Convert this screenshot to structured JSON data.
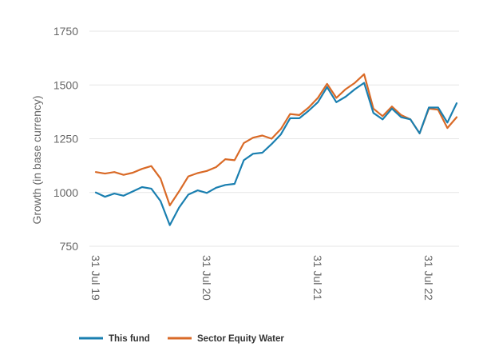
{
  "chart_data": {
    "type": "line",
    "title": "",
    "ylabel": "Growth (in base currency)",
    "xlabel": "",
    "ylim": [
      750,
      1750
    ],
    "yticks": [
      750,
      1000,
      1250,
      1500,
      1750
    ],
    "xticks": [
      {
        "label": "31 Jul 19",
        "t": 0
      },
      {
        "label": "31 Jul 20",
        "t": 12
      },
      {
        "label": "31 Jul 21",
        "t": 24
      },
      {
        "label": "31 Jul 22",
        "t": 36
      }
    ],
    "grid": true,
    "legend": "bottom-left",
    "series": [
      {
        "name": "This fund",
        "color": "#1a7fb0",
        "values": [
          1000,
          980,
          995,
          985,
          1005,
          1025,
          1018,
          960,
          848,
          930,
          990,
          1010,
          998,
          1022,
          1035,
          1040,
          1150,
          1180,
          1185,
          1225,
          1270,
          1345,
          1345,
          1380,
          1420,
          1490,
          1420,
          1445,
          1480,
          1510,
          1370,
          1340,
          1390,
          1350,
          1340,
          1275,
          1395,
          1395,
          1325,
          1415
        ]
      },
      {
        "name": "Sector Equity Water",
        "color": "#d96a27",
        "values": [
          1095,
          1088,
          1095,
          1082,
          1092,
          1110,
          1123,
          1065,
          940,
          1005,
          1075,
          1090,
          1100,
          1118,
          1155,
          1150,
          1230,
          1255,
          1265,
          1250,
          1295,
          1365,
          1360,
          1395,
          1440,
          1505,
          1440,
          1480,
          1510,
          1550,
          1390,
          1355,
          1400,
          1360,
          1340,
          1275,
          1390,
          1385,
          1300,
          1350
        ]
      }
    ]
  }
}
